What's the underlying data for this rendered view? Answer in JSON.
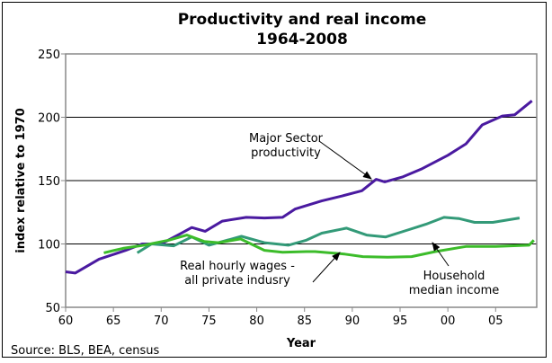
{
  "chart_data": {
    "type": "line",
    "title": "Productivity and real income",
    "subtitle": "1964-2008",
    "xlabel": "Year",
    "ylabel": "index relative to 1970",
    "source": "Source: BLS, BEA, census",
    "xlim": [
      1960,
      2009.3
    ],
    "ylim": [
      50,
      250
    ],
    "x_ticks": [
      1960,
      1965,
      1970,
      1975,
      1980,
      1985,
      1990,
      1995,
      2000,
      2005
    ],
    "x_tick_labels": [
      "60",
      "65",
      "70",
      "75",
      "80",
      "85",
      "90",
      "95",
      "00",
      "05"
    ],
    "y_ticks": [
      50,
      100,
      150,
      200,
      250
    ],
    "y_tick_labels": [
      "50",
      "100",
      "150",
      "200",
      "250"
    ],
    "grid": "horizontal",
    "series": [
      {
        "name": "Major Sector productivity",
        "color": "#4a1aa0",
        "x": [
          1960,
          1961,
          1963.5,
          1966.3,
          1968,
          1970,
          1972,
          1973.2,
          1974.6,
          1976.4,
          1978.9,
          1980.8,
          1982.7,
          1984,
          1986.8,
          1989,
          1991,
          1992.5,
          1993.4,
          1995.3,
          1997.2,
          2000,
          2001.9,
          2003.6,
          2005.7,
          2007,
          2008.8
        ],
        "y": [
          78,
          77,
          88,
          95,
          100,
          100,
          108,
          113,
          110,
          118,
          121,
          120.5,
          121,
          127.5,
          134,
          138,
          142,
          151,
          149,
          153,
          159,
          170,
          179,
          194,
          201,
          202,
          213
        ]
      },
      {
        "name": "Household median income",
        "color": "#339a78",
        "x": [
          1967.5,
          1969,
          1971.3,
          1973.2,
          1975,
          1978.4,
          1980.8,
          1983.3,
          1985.2,
          1986.8,
          1989.4,
          1991.5,
          1993.5,
          1995.8,
          1997.7,
          1999.6,
          2001.2,
          2002.8,
          2004.7,
          2007.5
        ],
        "y": [
          93,
          100,
          98.5,
          105.5,
          99,
          106,
          101,
          99,
          103,
          108.5,
          112.5,
          107,
          105.5,
          111,
          115.5,
          121,
          120,
          117,
          117,
          120.5
        ]
      },
      {
        "name": "Real hourly wages - all private indusry",
        "color": "#3cbc2a",
        "x": [
          1964,
          1966,
          1968.2,
          1970.8,
          1972.7,
          1974.5,
          1976,
          1978.3,
          1980.8,
          1982.7,
          1985.2,
          1986.1,
          1989.2,
          1991.1,
          1993.7,
          1996.2,
          1998.7,
          2001.9,
          2005,
          2008.5,
          2009
        ],
        "y": [
          93,
          96.5,
          99,
          103,
          107,
          102,
          101,
          104,
          95,
          93.5,
          94,
          94,
          92,
          90,
          89.5,
          90,
          94,
          98,
          98,
          99,
          103
        ]
      }
    ],
    "annotations": [
      {
        "lines": [
          "Major Sector",
          "productivity"
        ]
      },
      {
        "lines": [
          "Real hourly wages -",
          "all private indusry"
        ]
      },
      {
        "lines": [
          "Household",
          "median income"
        ]
      }
    ]
  }
}
